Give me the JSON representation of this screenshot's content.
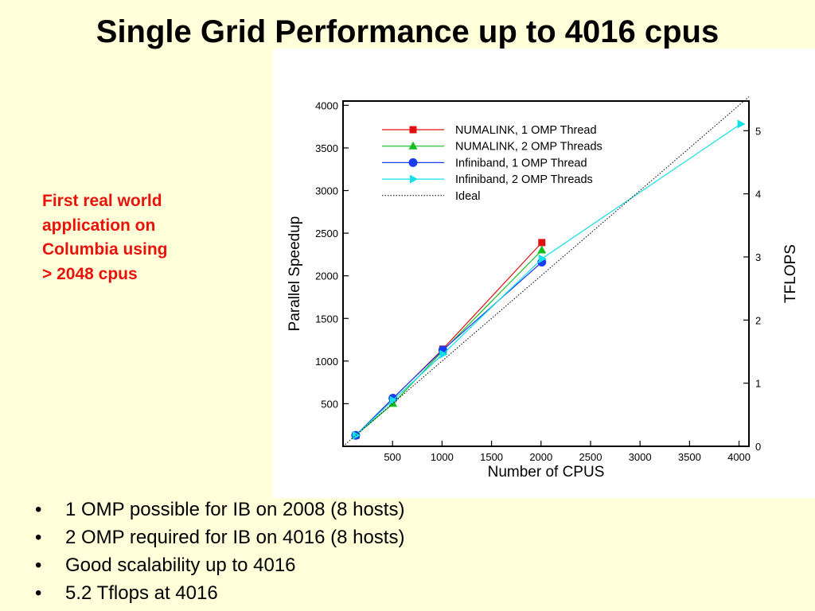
{
  "slide": {
    "title": "Single Grid Performance up to 4016 cpus",
    "note_lines": [
      "First real world",
      "application on",
      "Columbia using",
      "> 2048 cpus"
    ],
    "bullets": [
      "1 OMP possible for IB on 2008 (8 hosts)",
      "2 OMP required for IB on 4016 (8 hosts)",
      "Good scalability up to 4016",
      "5.2 Tflops at 4016"
    ],
    "bullet_glyph": "•",
    "colors": {
      "background": "#FFFFD9",
      "note": "#E8130C"
    }
  },
  "chart_data": {
    "type": "line",
    "xlabel": "Number of CPUS",
    "ylabel": "Parallel Speedup",
    "y2label": "TFLOPS",
    "xlim": [
      0,
      4100
    ],
    "ylim": [
      0,
      4050
    ],
    "y2lim": [
      0,
      5.47
    ],
    "x_ticks": [
      500,
      1000,
      1500,
      2000,
      2500,
      3000,
      3500,
      4000
    ],
    "y_ticks": [
      500,
      1000,
      1500,
      2000,
      2500,
      3000,
      3500,
      4000
    ],
    "y2_ticks": [
      0,
      1,
      2,
      3,
      4,
      5
    ],
    "legend_position": "top-left",
    "series": [
      {
        "name": "NUMALINK, 1 OMP Thread",
        "color": "#E01010",
        "marker": "square",
        "x": [
          128,
          504,
          1008,
          2008
        ],
        "y": [
          128,
          560,
          1140,
          2390
        ]
      },
      {
        "name": "NUMALINK, 2 OMP Threads",
        "color": "#10C020",
        "marker": "triangle",
        "x": [
          128,
          504,
          1008,
          2008
        ],
        "y": [
          128,
          500,
          1120,
          2300
        ]
      },
      {
        "name": "Infiniband, 1 OMP Thread",
        "color": "#1A3CF0",
        "marker": "circle",
        "x": [
          128,
          504,
          1008,
          2008
        ],
        "y": [
          128,
          565,
          1130,
          2160
        ]
      },
      {
        "name": "Infiniband, 2 OMP Threads",
        "color": "#10E0E8",
        "marker": "triangle-right",
        "x": [
          128,
          504,
          1008,
          2008,
          4016
        ],
        "y": [
          128,
          540,
          1080,
          2200,
          3780
        ]
      },
      {
        "name": "Ideal",
        "color": "#000000",
        "marker": "none",
        "dotted": true,
        "x": [
          0,
          4100
        ],
        "y": [
          0,
          4100
        ]
      }
    ]
  }
}
